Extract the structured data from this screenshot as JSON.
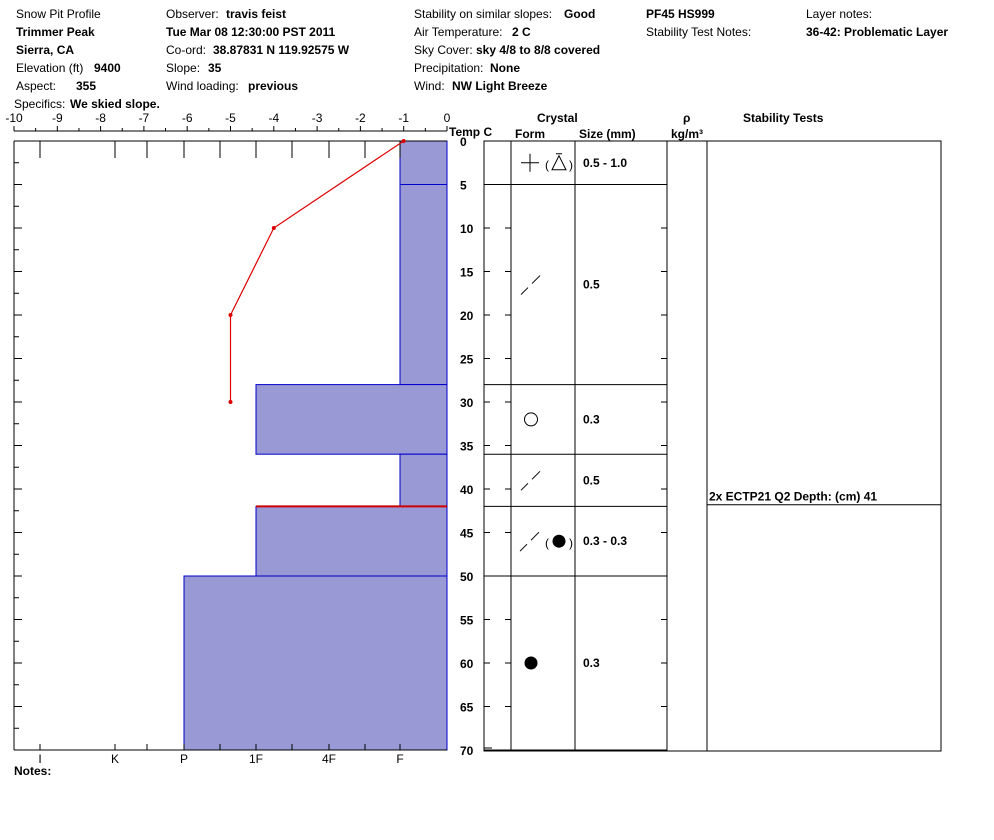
{
  "header": {
    "title": "Snow Pit Profile",
    "location": "Trimmer Peak",
    "region": "Sierra, CA",
    "elevation_label": "Elevation (ft)",
    "elevation": "9400",
    "aspect_label": "Aspect:",
    "aspect": "355",
    "specifics_label": "Specifics:",
    "specifics": "We skied slope.",
    "observer_label": "Observer:",
    "observer": "travis feist",
    "datetime": "Tue Mar 08 12:30:00 PST 2011",
    "coord_label": "Co-ord:",
    "coord": "38.87831 N 119.92575 W",
    "slope_label": "Slope:",
    "slope": "35",
    "wind_loading_label": "Wind loading:",
    "wind_loading": "previous",
    "stability_label": "Stability on similar slopes:",
    "stability": "Good",
    "air_temp_label": "Air Temperature:",
    "air_temp": "2 C",
    "sky_label": "Sky Cover:",
    "sky": "sky 4/8 to 8/8 covered",
    "precip_label": "Precipitation:",
    "precip": "None",
    "wind_label": "Wind:",
    "wind": "NW Light Breeze",
    "pit_code": "PF45 HS999",
    "stability_notes_label": "Stability Test Notes:",
    "layer_notes_label": "Layer notes:",
    "layer_note": "36-42: Problematic Layer"
  },
  "columns": {
    "temp_header": "Temp C",
    "crystal": "Crystal",
    "form": "Form",
    "size": "Size (mm)",
    "rho": "ρ",
    "density_unit": "kg/m³",
    "stability_tests": "Stability Tests"
  },
  "notes_label": "Notes:",
  "colors": {
    "hardness_fill": "#9999d6",
    "hardness_edge": "#0000cc",
    "temp_line": "#dd0000",
    "problem_line": "#cc0000"
  },
  "chart_data": {
    "type": "snow-profile",
    "temp_axis": {
      "ticks": [
        -10,
        -9,
        -8,
        -7,
        -6,
        -5,
        -4,
        -3,
        -2,
        -1,
        0
      ],
      "range": [
        -10,
        0
      ]
    },
    "depth_axis": {
      "ticks": [
        0,
        5,
        10,
        15,
        20,
        25,
        30,
        35,
        40,
        45,
        50,
        55,
        60,
        65,
        70
      ],
      "range": [
        0,
        70
      ],
      "unit": "cm"
    },
    "hardness_axis": {
      "labels": [
        "I",
        "K",
        "P",
        "1F",
        "4F",
        "F"
      ]
    },
    "temperature_profile": [
      {
        "depth": 0,
        "temp": -1
      },
      {
        "depth": 10,
        "temp": -4
      },
      {
        "depth": 20,
        "temp": -5
      },
      {
        "depth": 30,
        "temp": -5
      }
    ],
    "layers": [
      {
        "top": 0,
        "bottom": 5,
        "hardness": "F",
        "form": [
          "plus",
          "open",
          "triangle",
          "close"
        ],
        "size": "0.5 - 1.0"
      },
      {
        "top": 5,
        "bottom": 28,
        "hardness": "F",
        "form": [
          "slash"
        ],
        "size": "0.5"
      },
      {
        "top": 28,
        "bottom": 36,
        "hardness": "1F",
        "form": [
          "circle"
        ],
        "size": "0.3"
      },
      {
        "top": 36,
        "bottom": 42,
        "hardness": "F",
        "form": [
          "slash"
        ],
        "size": "0.5"
      },
      {
        "top": 42,
        "bottom": 50,
        "hardness": "1F",
        "form": [
          "slash",
          "open",
          "dot",
          "close"
        ],
        "size": "0.3 - 0.3"
      },
      {
        "top": 50,
        "bottom": 70,
        "hardness": "P",
        "form": [
          "dot"
        ],
        "size": "0.3"
      }
    ],
    "problem_layer_depth": 42,
    "stability_tests": [
      {
        "depth": 41,
        "text": "2x ECTP21 Q2 Depth: (cm) 41"
      }
    ]
  }
}
